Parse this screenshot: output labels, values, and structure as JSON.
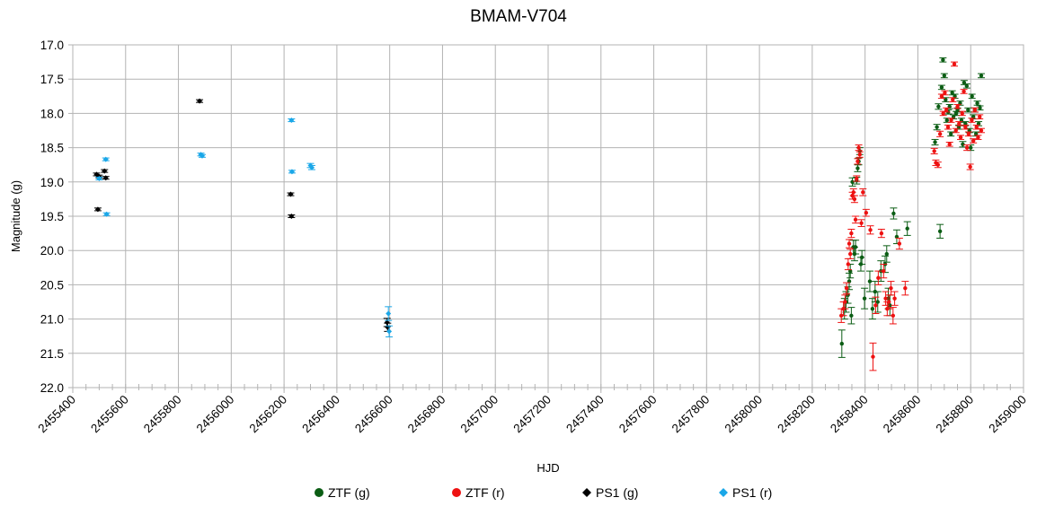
{
  "chart_data": {
    "type": "scatter",
    "title": "BMAM-V704",
    "xlabel": "HJD",
    "ylabel": "Magnitude (g)",
    "xlim": [
      2455400,
      2459000
    ],
    "ylim": [
      17.0,
      22.0
    ],
    "y_inverted": true,
    "grid": true,
    "legend_position": "bottom",
    "x_ticks": [
      "2455400",
      "2455600",
      "2455800",
      "2456000",
      "2456200",
      "2456400",
      "2456600",
      "2456800",
      "2457000",
      "2457200",
      "2457400",
      "2457600",
      "2457800",
      "2458000",
      "2458200",
      "2458400",
      "2458600",
      "2458800",
      "2459000"
    ],
    "y_ticks": [
      "17.0",
      "17.5",
      "18.0",
      "18.5",
      "19.0",
      "19.5",
      "20.0",
      "20.5",
      "21.0",
      "21.5",
      "22.0"
    ],
    "series": [
      {
        "name": "ZTF (g)",
        "color": "#0b5d14",
        "marker": "circle",
        "points": [
          [
            2458312,
            21.36,
            0.2
          ],
          [
            2458322,
            20.85,
            0.15
          ],
          [
            2458328,
            20.75,
            0.15
          ],
          [
            2458335,
            20.65,
            0.12
          ],
          [
            2458340,
            20.45,
            0.12
          ],
          [
            2458344,
            20.3,
            0.1
          ],
          [
            2458348,
            20.95,
            0.12
          ],
          [
            2458352,
            19.0,
            0.06
          ],
          [
            2458356,
            19.95,
            0.1
          ],
          [
            2458360,
            20.05,
            0.1
          ],
          [
            2458364,
            19.95,
            0.1
          ],
          [
            2458368,
            18.98,
            0.05
          ],
          [
            2458372,
            18.8,
            0.05
          ],
          [
            2458376,
            18.7,
            0.05
          ],
          [
            2458380,
            18.55,
            0.05
          ],
          [
            2458384,
            20.2,
            0.1
          ],
          [
            2458388,
            20.1,
            0.1
          ],
          [
            2458398,
            20.7,
            0.15
          ],
          [
            2458418,
            20.45,
            0.15
          ],
          [
            2458428,
            20.85,
            0.15
          ],
          [
            2458438,
            20.6,
            0.15
          ],
          [
            2458448,
            20.75,
            0.15
          ],
          [
            2458460,
            20.3,
            0.15
          ],
          [
            2458476,
            20.2,
            0.12
          ],
          [
            2458482,
            20.05,
            0.12
          ],
          [
            2458488,
            20.7,
            0.15
          ],
          [
            2458494,
            20.8,
            0.15
          ],
          [
            2458508,
            19.46,
            0.08
          ],
          [
            2458520,
            19.8,
            0.1
          ],
          [
            2458560,
            19.68,
            0.1
          ],
          [
            2458665,
            18.42,
            0.04
          ],
          [
            2458672,
            18.2,
            0.04
          ],
          [
            2458678,
            17.9,
            0.04
          ],
          [
            2458684,
            19.72,
            0.1
          ],
          [
            2458690,
            17.62,
            0.03
          ],
          [
            2458695,
            17.22,
            0.03
          ],
          [
            2458700,
            17.45,
            0.03
          ],
          [
            2458705,
            17.8,
            0.03
          ],
          [
            2458710,
            18.1,
            0.03
          ],
          [
            2458715,
            17.98,
            0.03
          ],
          [
            2458720,
            17.9,
            0.03
          ],
          [
            2458725,
            18.3,
            0.03
          ],
          [
            2458730,
            17.7,
            0.03
          ],
          [
            2458735,
            18.05,
            0.03
          ],
          [
            2458740,
            17.75,
            0.03
          ],
          [
            2458745,
            18.0,
            0.03
          ],
          [
            2458750,
            17.95,
            0.03
          ],
          [
            2458755,
            18.2,
            0.03
          ],
          [
            2458760,
            17.85,
            0.03
          ],
          [
            2458765,
            18.1,
            0.03
          ],
          [
            2458770,
            18.45,
            0.04
          ],
          [
            2458775,
            17.55,
            0.03
          ],
          [
            2458780,
            18.15,
            0.03
          ],
          [
            2458785,
            17.6,
            0.03
          ],
          [
            2458790,
            17.95,
            0.03
          ],
          [
            2458795,
            18.25,
            0.03
          ],
          [
            2458800,
            18.5,
            0.04
          ],
          [
            2458805,
            17.75,
            0.03
          ],
          [
            2458810,
            18.05,
            0.03
          ],
          [
            2458815,
            17.95,
            0.03
          ],
          [
            2458820,
            18.3,
            0.03
          ],
          [
            2458825,
            17.85,
            0.03
          ],
          [
            2458830,
            18.15,
            0.03
          ],
          [
            2458835,
            17.92,
            0.03
          ],
          [
            2458840,
            17.45,
            0.03
          ]
        ]
      },
      {
        "name": "ZTF (r)",
        "color": "#ee1111",
        "marker": "circle",
        "points": [
          [
            2458310,
            20.95,
            0.1
          ],
          [
            2458318,
            20.85,
            0.1
          ],
          [
            2458324,
            20.75,
            0.1
          ],
          [
            2458330,
            20.55,
            0.08
          ],
          [
            2458336,
            20.2,
            0.08
          ],
          [
            2458340,
            19.9,
            0.06
          ],
          [
            2458344,
            20.05,
            0.07
          ],
          [
            2458348,
            19.75,
            0.06
          ],
          [
            2458352,
            19.2,
            0.05
          ],
          [
            2458356,
            19.15,
            0.05
          ],
          [
            2458360,
            19.25,
            0.05
          ],
          [
            2458364,
            19.55,
            0.05
          ],
          [
            2458368,
            18.95,
            0.04
          ],
          [
            2458372,
            18.7,
            0.04
          ],
          [
            2458376,
            18.5,
            0.04
          ],
          [
            2458380,
            18.6,
            0.04
          ],
          [
            2458386,
            19.6,
            0.05
          ],
          [
            2458392,
            19.15,
            0.05
          ],
          [
            2458404,
            19.45,
            0.05
          ],
          [
            2458420,
            19.7,
            0.06
          ],
          [
            2458430,
            21.55,
            0.2
          ],
          [
            2458440,
            20.8,
            0.12
          ],
          [
            2458450,
            20.4,
            0.1
          ],
          [
            2458462,
            19.75,
            0.06
          ],
          [
            2458470,
            20.3,
            0.1
          ],
          [
            2458478,
            20.7,
            0.1
          ],
          [
            2458484,
            20.85,
            0.1
          ],
          [
            2458490,
            20.75,
            0.1
          ],
          [
            2458498,
            20.55,
            0.1
          ],
          [
            2458506,
            20.95,
            0.12
          ],
          [
            2458512,
            20.7,
            0.1
          ],
          [
            2458530,
            19.9,
            0.08
          ],
          [
            2458552,
            20.55,
            0.1
          ],
          [
            2458662,
            18.55,
            0.04
          ],
          [
            2458668,
            18.72,
            0.04
          ],
          [
            2458676,
            18.75,
            0.04
          ],
          [
            2458684,
            18.3,
            0.04
          ],
          [
            2458690,
            17.75,
            0.03
          ],
          [
            2458696,
            18.0,
            0.03
          ],
          [
            2458702,
            17.7,
            0.03
          ],
          [
            2458708,
            17.95,
            0.03
          ],
          [
            2458714,
            18.2,
            0.03
          ],
          [
            2458720,
            18.45,
            0.03
          ],
          [
            2458726,
            18.1,
            0.03
          ],
          [
            2458732,
            17.8,
            0.03
          ],
          [
            2458738,
            17.28,
            0.03
          ],
          [
            2458744,
            18.25,
            0.03
          ],
          [
            2458750,
            17.9,
            0.03
          ],
          [
            2458756,
            18.15,
            0.03
          ],
          [
            2458762,
            18.35,
            0.03
          ],
          [
            2458768,
            18.0,
            0.03
          ],
          [
            2458774,
            17.68,
            0.03
          ],
          [
            2458780,
            18.2,
            0.03
          ],
          [
            2458786,
            18.5,
            0.04
          ],
          [
            2458792,
            18.3,
            0.03
          ],
          [
            2458798,
            18.78,
            0.04
          ],
          [
            2458804,
            18.1,
            0.03
          ],
          [
            2458810,
            18.4,
            0.03
          ],
          [
            2458816,
            17.95,
            0.03
          ],
          [
            2458822,
            18.2,
            0.03
          ],
          [
            2458828,
            18.35,
            0.03
          ],
          [
            2458834,
            18.05,
            0.03
          ],
          [
            2458840,
            18.25,
            0.03
          ]
        ]
      },
      {
        "name": "PS1 (g)",
        "color": "#000000",
        "marker": "diamond",
        "points": [
          [
            2455490,
            18.89,
            0.02
          ],
          [
            2455500,
            18.92,
            0.02
          ],
          [
            2455495,
            19.4,
            0.02
          ],
          [
            2455520,
            18.84,
            0.02
          ],
          [
            2455525,
            18.94,
            0.02
          ],
          [
            2455880,
            17.82,
            0.02
          ],
          [
            2456225,
            19.18,
            0.02
          ],
          [
            2456228,
            19.5,
            0.02
          ],
          [
            2456590,
            21.05,
            0.06
          ],
          [
            2456592,
            21.12,
            0.06
          ]
        ]
      },
      {
        "name": "PS1 (r)",
        "color": "#1aa7e8",
        "marker": "diamond",
        "points": [
          [
            2455500,
            18.95,
            0.02
          ],
          [
            2455525,
            18.67,
            0.02
          ],
          [
            2455528,
            19.47,
            0.02
          ],
          [
            2455885,
            18.6,
            0.02
          ],
          [
            2455890,
            18.62,
            0.02
          ],
          [
            2456228,
            18.1,
            0.02
          ],
          [
            2456230,
            18.85,
            0.02
          ],
          [
            2456300,
            18.76,
            0.03
          ],
          [
            2456305,
            18.79,
            0.03
          ],
          [
            2456595,
            20.92,
            0.1
          ],
          [
            2456598,
            21.18,
            0.08
          ]
        ]
      }
    ]
  }
}
